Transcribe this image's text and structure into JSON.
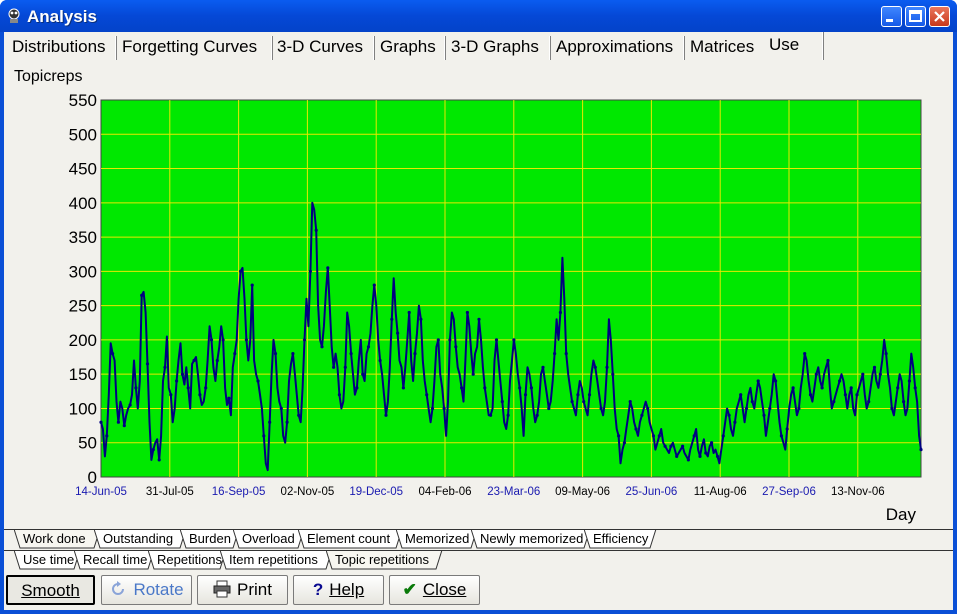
{
  "window": {
    "title": "Analysis"
  },
  "tabs": [
    {
      "label": "Distributions"
    },
    {
      "label": "Forgetting Curves"
    },
    {
      "label": "3-D Curves"
    },
    {
      "label": "Graphs"
    },
    {
      "label": "3-D Graphs"
    },
    {
      "label": "Approximations"
    },
    {
      "label": "Matrices"
    },
    {
      "label": "Use"
    }
  ],
  "chart_data": {
    "type": "line",
    "ylabel": "Topicreps",
    "xlabel": "Day",
    "ylim": [
      0,
      550
    ],
    "y_ticks": [
      "0",
      "50",
      "100",
      "150",
      "200",
      "250",
      "300",
      "350",
      "400",
      "450",
      "500",
      "550"
    ],
    "x_ticks": [
      "14-Jun-05",
      "31-Jul-05",
      "16-Sep-05",
      "02-Nov-05",
      "19-Dec-05",
      "04-Feb-06",
      "23-Mar-06",
      "09-May-06",
      "25-Jun-06",
      "11-Aug-06",
      "27-Sep-06",
      "13-Nov-06"
    ],
    "grid": true,
    "colors": {
      "background": "#00e800",
      "grid": "#e8e800",
      "line": "#000080",
      "tick_highlight": "#1a1ab0"
    },
    "series": [
      {
        "values": [
          80,
          70,
          30,
          60,
          120,
          195,
          180,
          170,
          110,
          80,
          110,
          100,
          75,
          90,
          100,
          105,
          120,
          170,
          130,
          100,
          140,
          265,
          270,
          240,
          165,
          80,
          25,
          40,
          50,
          55,
          25,
          60,
          140,
          160,
          205,
          130,
          120,
          80,
          100,
          140,
          170,
          195,
          150,
          135,
          160,
          130,
          100,
          165,
          170,
          175,
          150,
          120,
          105,
          110,
          130,
          170,
          220,
          200,
          160,
          140,
          170,
          190,
          220,
          200,
          130,
          105,
          115,
          90,
          160,
          180,
          200,
          260,
          300,
          305,
          260,
          200,
          170,
          200,
          280,
          170,
          150,
          140,
          120,
          100,
          60,
          20,
          10,
          80,
          150,
          200,
          180,
          130,
          110,
          100,
          60,
          50,
          80,
          140,
          165,
          180,
          150,
          120,
          90,
          80,
          130,
          200,
          260,
          220,
          300,
          400,
          390,
          360,
          250,
          200,
          190,
          220,
          270,
          305,
          250,
          190,
          160,
          180,
          160,
          120,
          100,
          110,
          160,
          240,
          220,
          180,
          150,
          120,
          130,
          170,
          200,
          150,
          140,
          180,
          190,
          210,
          250,
          280,
          250,
          200,
          170,
          150,
          120,
          90,
          110,
          160,
          230,
          290,
          240,
          210,
          170,
          160,
          130,
          160,
          200,
          240,
          170,
          140,
          180,
          210,
          250,
          230,
          170,
          140,
          120,
          100,
          80,
          100,
          140,
          190,
          200,
          150,
          130,
          100,
          60,
          110,
          200,
          240,
          230,
          190,
          160,
          150,
          130,
          110,
          170,
          240,
          220,
          180,
          150,
          180,
          190,
          230,
          200,
          160,
          130,
          110,
          90,
          90,
          100,
          170,
          200,
          170,
          140,
          110,
          80,
          70,
          90,
          140,
          170,
          200,
          180,
          150,
          130,
          100,
          60,
          120,
          160,
          150,
          130,
          100,
          80,
          90,
          110,
          150,
          160,
          140,
          120,
          100,
          110,
          140,
          180,
          230,
          200,
          240,
          320,
          260,
          180,
          150,
          130,
          110,
          100,
          90,
          120,
          140,
          130,
          110,
          100,
          90,
          120,
          150,
          170,
          160,
          140,
          120,
          100,
          90,
          110,
          160,
          230,
          200,
          150,
          100,
          70,
          60,
          20,
          40,
          50,
          70,
          90,
          110,
          100,
          80,
          70,
          60,
          80,
          90,
          100,
          110,
          100,
          80,
          70,
          60,
          40,
          50,
          60,
          70,
          50,
          45,
          40,
          35,
          45,
          50,
          40,
          30,
          35,
          40,
          45,
          35,
          30,
          25,
          40,
          50,
          60,
          70,
          40,
          30,
          45,
          55,
          35,
          30,
          45,
          50,
          35,
          40,
          30,
          20,
          40,
          60,
          80,
          100,
          90,
          70,
          60,
          80,
          100,
          110,
          120,
          100,
          80,
          100,
          120,
          130,
          110,
          100,
          120,
          140,
          130,
          110,
          90,
          60,
          80,
          100,
          120,
          150,
          140,
          110,
          80,
          60,
          50,
          40,
          70,
          100,
          120,
          130,
          110,
          90,
          100,
          130,
          150,
          180,
          170,
          140,
          120,
          110,
          130,
          150,
          160,
          140,
          130,
          150,
          160,
          170,
          130,
          100,
          110,
          120,
          130,
          140,
          150,
          140,
          120,
          100,
          120,
          130,
          100,
          90,
          120,
          130,
          140,
          150,
          120,
          100,
          110,
          130,
          150,
          160,
          140,
          130,
          150,
          170,
          200,
          180,
          150,
          130,
          100,
          90,
          110,
          130,
          150,
          140,
          110,
          90,
          100,
          140,
          180,
          160,
          130,
          110,
          60,
          40
        ]
      }
    ]
  },
  "bottom_tabs_row1": [
    {
      "label": "Work done"
    },
    {
      "label": "Outstanding"
    },
    {
      "label": "Burden"
    },
    {
      "label": "Overload"
    },
    {
      "label": "Element count"
    },
    {
      "label": "Memorized"
    },
    {
      "label": "Newly memorized"
    },
    {
      "label": "Efficiency"
    }
  ],
  "bottom_tabs_row2": [
    {
      "label": "Use time"
    },
    {
      "label": "Recall time"
    },
    {
      "label": "Repetitions"
    },
    {
      "label": "Item repetitions"
    },
    {
      "label": "Topic repetitions"
    }
  ],
  "buttons": {
    "smooth": "Smooth",
    "rotate": "Rotate",
    "print": "Print",
    "help": "Help",
    "close": "Close"
  }
}
